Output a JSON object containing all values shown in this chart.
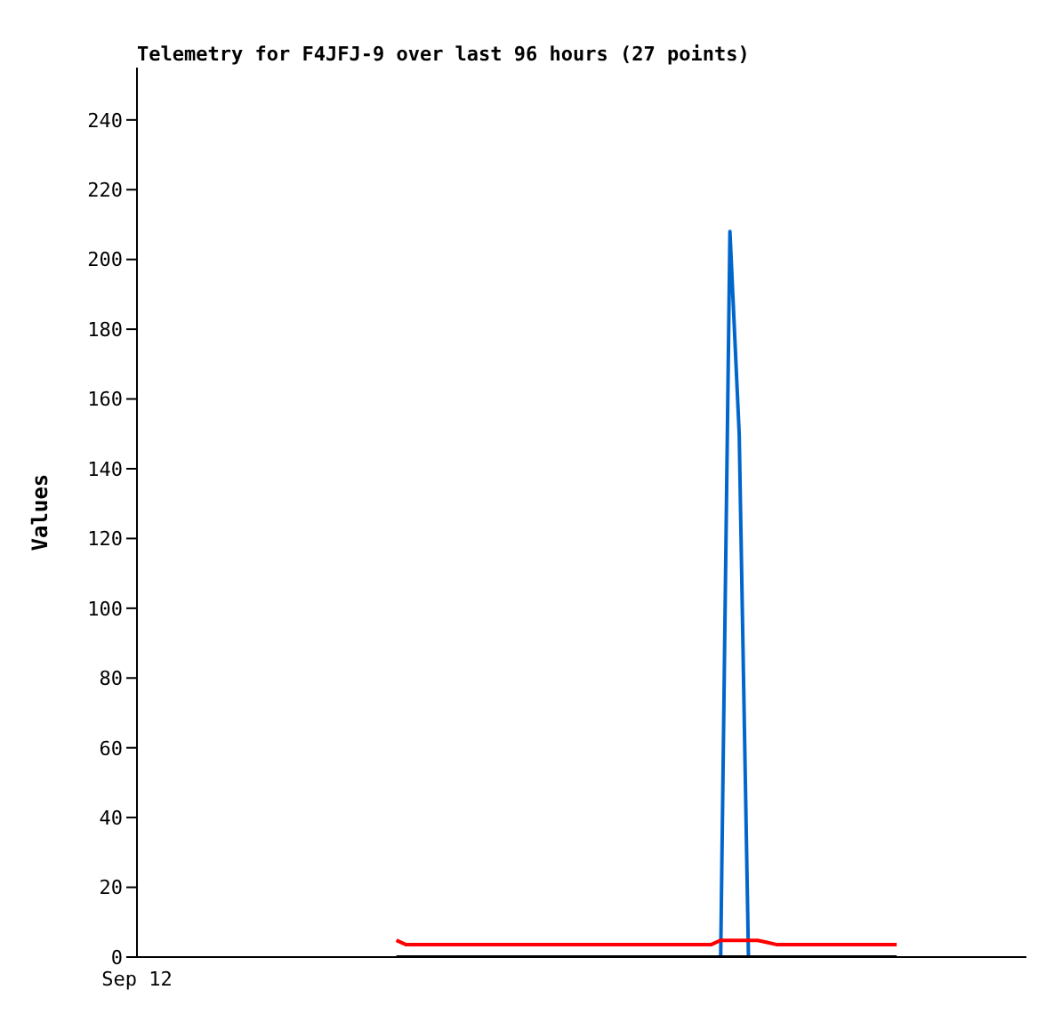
{
  "chart_data": {
    "type": "line",
    "title": "Telemetry for F4JFJ-9 over last 96 hours (27 points)",
    "ylabel": "Values",
    "categories": [
      "Sep 12",
      null,
      null,
      null,
      null,
      null,
      null,
      null,
      null,
      null,
      null,
      null,
      null,
      null,
      null,
      null,
      null,
      null,
      null,
      null,
      null,
      null,
      null,
      null,
      null,
      null,
      null,
      null,
      null,
      null,
      null,
      null,
      null,
      null,
      null,
      null,
      null,
      null,
      null,
      null,
      null,
      null,
      null,
      null,
      null,
      null,
      null,
      null,
      null,
      null,
      null,
      null,
      null,
      null,
      null,
      null,
      null,
      null,
      null,
      null,
      null,
      null,
      null,
      null,
      null,
      null,
      null,
      null,
      null,
      null,
      null,
      null,
      null,
      null,
      null,
      null,
      null,
      null,
      null,
      null,
      null,
      null,
      null,
      null,
      null,
      null,
      null,
      null,
      null,
      null,
      null,
      null,
      null,
      null,
      null,
      null,
      null
    ],
    "ylim": [
      0,
      255
    ],
    "yticks": [
      0,
      20,
      40,
      60,
      80,
      100,
      120,
      140,
      160,
      180,
      200,
      220,
      240
    ],
    "grid": false,
    "marker": "none",
    "line_style": "solid",
    "series": [
      {
        "color": "#0066cc",
        "values": [
          null,
          null,
          null,
          null,
          null,
          null,
          null,
          null,
          null,
          null,
          null,
          null,
          null,
          null,
          null,
          null,
          null,
          null,
          null,
          null,
          null,
          null,
          null,
          null,
          null,
          null,
          null,
          null,
          null,
          null,
          null,
          null,
          null,
          null,
          null,
          null,
          null,
          null,
          null,
          null,
          null,
          null,
          null,
          null,
          null,
          null,
          null,
          null,
          null,
          null,
          null,
          null,
          null,
          null,
          null,
          null,
          null,
          null,
          null,
          null,
          null,
          null,
          null,
          0,
          208,
          150,
          0,
          null,
          null,
          null,
          null,
          null,
          null,
          null,
          null,
          null,
          null,
          null,
          null,
          null,
          null,
          null,
          null,
          null,
          null,
          null,
          null,
          null,
          null,
          null,
          null,
          null,
          null,
          null,
          null,
          null,
          null
        ]
      },
      {
        "color": "#ff0000",
        "values": [
          null,
          null,
          null,
          null,
          null,
          null,
          null,
          null,
          null,
          null,
          null,
          null,
          null,
          null,
          null,
          null,
          null,
          null,
          null,
          null,
          null,
          null,
          null,
          null,
          null,
          null,
          null,
          null,
          4.8,
          3.6,
          3.6,
          3.6,
          3.6,
          3.6,
          3.6,
          3.6,
          3.6,
          3.6,
          3.6,
          3.6,
          3.6,
          3.6,
          3.6,
          3.6,
          3.6,
          3.6,
          3.6,
          3.6,
          3.6,
          3.6,
          3.6,
          3.6,
          3.6,
          3.6,
          3.6,
          3.6,
          3.6,
          3.6,
          3.6,
          3.6,
          3.6,
          3.6,
          3.6,
          4.8,
          4.8,
          4.8,
          4.8,
          4.8,
          4.2,
          3.6,
          3.6,
          3.6,
          3.6,
          3.6,
          3.6,
          3.6,
          3.6,
          3.6,
          3.6,
          3.6,
          3.6,
          3.6,
          3.6,
          null,
          null,
          null,
          null,
          null,
          null,
          null,
          null,
          null,
          null,
          null,
          null,
          null,
          null
        ]
      },
      {
        "color": "#000000",
        "values": [
          null,
          null,
          null,
          null,
          null,
          null,
          null,
          null,
          null,
          null,
          null,
          null,
          null,
          null,
          null,
          null,
          null,
          null,
          null,
          null,
          null,
          null,
          null,
          null,
          null,
          null,
          null,
          null,
          0,
          0,
          0,
          0,
          0,
          0,
          0,
          0,
          0,
          0,
          0,
          0,
          0,
          0,
          0,
          0,
          0,
          0,
          0,
          0,
          0,
          0,
          0,
          0,
          0,
          0,
          0,
          0,
          0,
          0,
          0,
          0,
          0,
          0,
          0,
          0,
          0,
          0,
          0,
          0,
          0,
          0,
          0,
          0,
          0,
          0,
          0,
          0,
          0,
          0,
          0,
          0,
          0,
          0,
          0,
          null,
          null,
          null,
          null,
          null,
          null,
          null,
          null,
          null,
          null,
          null,
          null,
          null,
          null
        ]
      }
    ]
  }
}
